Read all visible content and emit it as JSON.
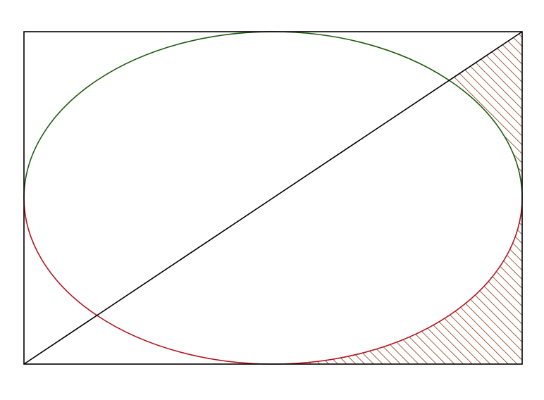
{
  "figure": {
    "shapes": [
      "rectangle",
      "ellipse-upper-half",
      "ellipse-lower-half",
      "diagonal",
      "hatched-region"
    ],
    "colors": {
      "background": "#ffffff",
      "rectangle_stroke": "#000000",
      "diagonal_stroke": "#000000",
      "ellipse_upper_stroke": "#1e5a0f",
      "ellipse_lower_stroke": "#b3141e",
      "hatch_stroke": "#8b3a12"
    }
  }
}
